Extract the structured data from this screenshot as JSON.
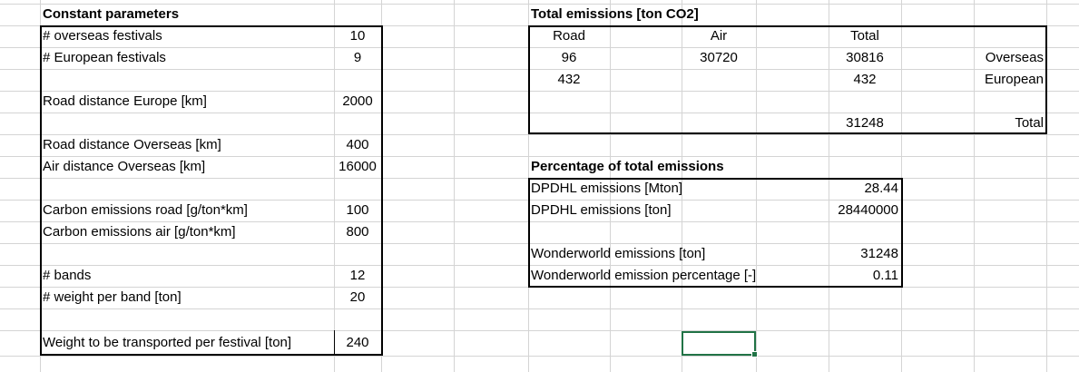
{
  "constant_parameters": {
    "header": "Constant parameters",
    "rows": [
      {
        "label": "# overseas festivals",
        "value": "10"
      },
      {
        "label": "# European festivals",
        "value": "9"
      },
      {
        "label": "Road distance Europe [km]",
        "value": "2000"
      },
      {
        "label": "Road distance Overseas [km]",
        "value": "400"
      },
      {
        "label": "Air distance Overseas [km]",
        "value": "16000"
      },
      {
        "label": "Carbon emissions road [g/ton*km]",
        "value": "100"
      },
      {
        "label": "Carbon emissions air [g/ton*km]",
        "value": "800"
      },
      {
        "label": "# bands",
        "value": "12"
      },
      {
        "label": "# weight per band [ton]",
        "value": "20"
      },
      {
        "label": "Weight to be transported per festival [ton]",
        "value": "240"
      }
    ]
  },
  "total_emissions": {
    "header": "Total emissions [ton CO2]",
    "columns": [
      "Road",
      "Air",
      "Total"
    ],
    "rows": [
      {
        "road": "96",
        "air": "30720",
        "total": "30816",
        "label": "Overseas"
      },
      {
        "road": "432",
        "air": "",
        "total": "432",
        "label": "European"
      },
      {
        "road": "",
        "air": "",
        "total": "31248",
        "label": "Total"
      }
    ]
  },
  "percentage": {
    "header": "Percentage of total emissions",
    "rows": [
      {
        "label": "DPDHL emissions [Mton]",
        "value": "28.44"
      },
      {
        "label": "DPDHL emissions [ton]",
        "value": "28440000"
      },
      {
        "label": "Wonderworld emissions [ton]",
        "value": "31248"
      },
      {
        "label": "Wonderworld emission percentage [-]",
        "value": "0.11"
      }
    ]
  },
  "colors": {
    "gridline": "#d4d4d4",
    "border": "#000000",
    "selection": "#217346"
  }
}
